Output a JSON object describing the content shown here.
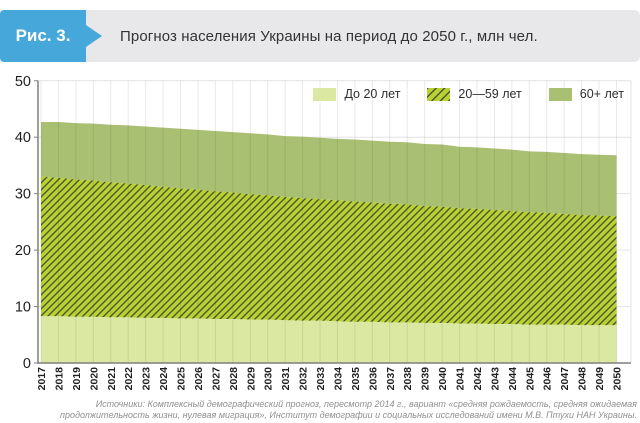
{
  "figure_label": "Рис. 3.",
  "title": "Прогноз населения Украины на период до 2050 г., млн чел.",
  "source": {
    "line1": "Источники: Комплексный демографический прогноз, пересмотр 2014 г., вариант «средняя рождаемость, средняя ожидаемая",
    "line2": "продолжительность жизни, нулевая миграция», Институт демографии и социальных исследований имени М.В. Птухи НАН Украины."
  },
  "colors": {
    "badge_blue": "#46a7da",
    "header_gray": "#e8e8ea",
    "under20_fill": "#dbe8a2",
    "mid_fill": "#b6d233",
    "hatch_line": "#52522e",
    "plus60_fill": "#a9bf72",
    "grid": "#e3e3e3",
    "grid_over_area": "rgba(40,40,20,0.10)",
    "axis": "#7f7f7f",
    "tick_text": "#1f1f1f"
  },
  "chart_data": {
    "type": "area",
    "stacked": true,
    "title": "Прогноз населения Украины на период до 2050 г., млн чел.",
    "ylabel": "млн чел.",
    "ylim": [
      0,
      50
    ],
    "yticks": [
      0,
      10,
      20,
      30,
      40,
      50
    ],
    "grid": true,
    "legend_position": "top-right",
    "x": [
      2017,
      2018,
      2019,
      2020,
      2021,
      2022,
      2023,
      2024,
      2025,
      2026,
      2027,
      2028,
      2029,
      2030,
      2031,
      2032,
      2033,
      2034,
      2035,
      2036,
      2037,
      2038,
      2039,
      2040,
      2041,
      2042,
      2043,
      2044,
      2045,
      2046,
      2047,
      2048,
      2049,
      2050
    ],
    "series": [
      {
        "name": "До 20 лет",
        "style": "solid",
        "values": [
          8.3,
          8.3,
          8.2,
          8.2,
          8.1,
          8.1,
          8.0,
          8.0,
          7.9,
          7.9,
          7.8,
          7.8,
          7.7,
          7.7,
          7.6,
          7.5,
          7.5,
          7.4,
          7.3,
          7.3,
          7.2,
          7.2,
          7.1,
          7.1,
          7.0,
          7.0,
          6.9,
          6.9,
          6.8,
          6.8,
          6.8,
          6.7,
          6.7,
          6.7
        ]
      },
      {
        "name": "20—59 лет",
        "style": "hatched",
        "values": [
          24.7,
          24.5,
          24.3,
          24.1,
          23.9,
          23.7,
          23.5,
          23.2,
          23.0,
          22.8,
          22.6,
          22.4,
          22.2,
          22.0,
          21.8,
          21.7,
          21.5,
          21.4,
          21.3,
          21.1,
          21.0,
          20.9,
          20.7,
          20.6,
          20.4,
          20.3,
          20.2,
          20.0,
          19.9,
          19.8,
          19.6,
          19.5,
          19.4,
          19.3
        ]
      },
      {
        "name": "60+ лет",
        "style": "solid",
        "values": [
          9.7,
          9.9,
          10.0,
          10.1,
          10.2,
          10.3,
          10.4,
          10.5,
          10.6,
          10.6,
          10.7,
          10.7,
          10.8,
          10.8,
          10.8,
          10.9,
          10.9,
          10.9,
          11.0,
          11.0,
          11.0,
          11.0,
          11.0,
          11.0,
          10.9,
          10.9,
          10.9,
          10.9,
          10.8,
          10.8,
          10.8,
          10.8,
          10.8,
          10.8
        ]
      }
    ]
  }
}
